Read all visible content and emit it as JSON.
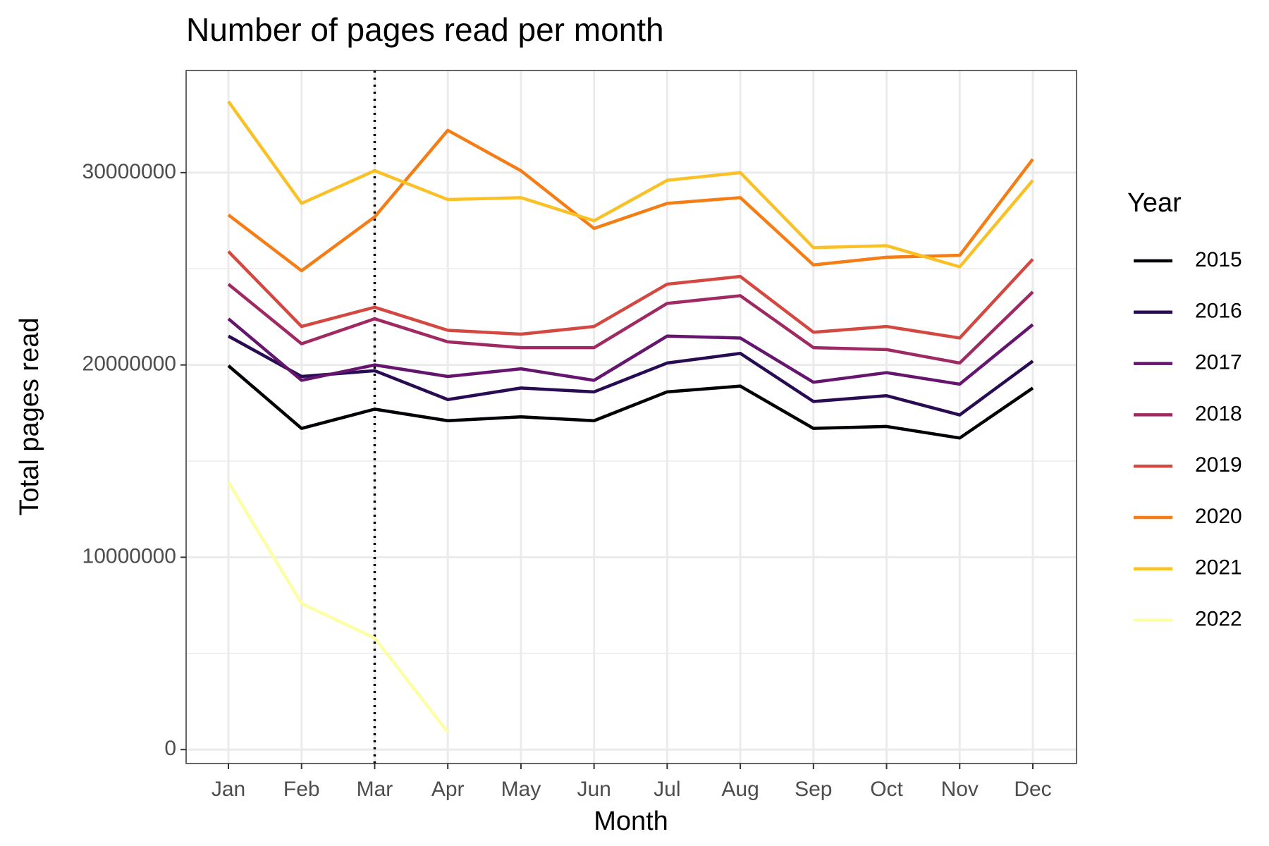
{
  "chart_data": {
    "type": "line",
    "title": "Number of pages read per month",
    "x_label": "Month",
    "y_label": "Total pages read",
    "legend_title": "Year",
    "legend": "right",
    "grid": true,
    "categories": [
      "Jan",
      "Feb",
      "Mar",
      "Apr",
      "May",
      "Jun",
      "Jul",
      "Aug",
      "Sep",
      "Oct",
      "Nov",
      "Dec"
    ],
    "vline_category": "Mar",
    "ylim": [
      -725000,
      35310000
    ],
    "yticks": [
      0,
      10000000,
      20000000,
      30000000
    ],
    "minor_yticks": [
      5000000,
      15000000,
      25000000
    ],
    "series": [
      {
        "name": "2015",
        "color": "#000004",
        "values": [
          19960000,
          16700000,
          17700000,
          17100000,
          17300000,
          17100000,
          18600000,
          18900000,
          16700000,
          16800000,
          16200000,
          18800000
        ]
      },
      {
        "name": "2016",
        "color": "#280b53",
        "values": [
          21500000,
          19400000,
          19700000,
          18200000,
          18800000,
          18600000,
          20100000,
          20600000,
          18100000,
          18400000,
          17400000,
          20200000
        ]
      },
      {
        "name": "2017",
        "color": "#65156e",
        "values": [
          22400000,
          19200000,
          20000000,
          19400000,
          19800000,
          19200000,
          21500000,
          21400000,
          19100000,
          19600000,
          19000000,
          22100000
        ]
      },
      {
        "name": "2018",
        "color": "#9f2a63",
        "values": [
          24200000,
          21100000,
          22400000,
          21200000,
          20900000,
          20900000,
          23200000,
          23600000,
          20900000,
          20800000,
          20100000,
          23800000
        ]
      },
      {
        "name": "2019",
        "color": "#d44842",
        "values": [
          25900000,
          22000000,
          23000000,
          21800000,
          21600000,
          22000000,
          24200000,
          24600000,
          21700000,
          22000000,
          21400000,
          25500000
        ]
      },
      {
        "name": "2020",
        "color": "#f57d15",
        "values": [
          27800000,
          24900000,
          27700000,
          32200000,
          30100000,
          27100000,
          28400000,
          28700000,
          25200000,
          25600000,
          25700000,
          30700000
        ]
      },
      {
        "name": "2021",
        "color": "#fac127",
        "values": [
          33700000,
          28400000,
          30100000,
          28600000,
          28700000,
          27500000,
          29600000,
          30000000,
          26100000,
          26200000,
          25100000,
          29600000
        ]
      },
      {
        "name": "2022",
        "color": "#fcffa4",
        "values": [
          13900000,
          7600000,
          5800000,
          900000,
          null,
          null,
          null,
          null,
          null,
          null,
          null,
          null
        ]
      }
    ]
  }
}
